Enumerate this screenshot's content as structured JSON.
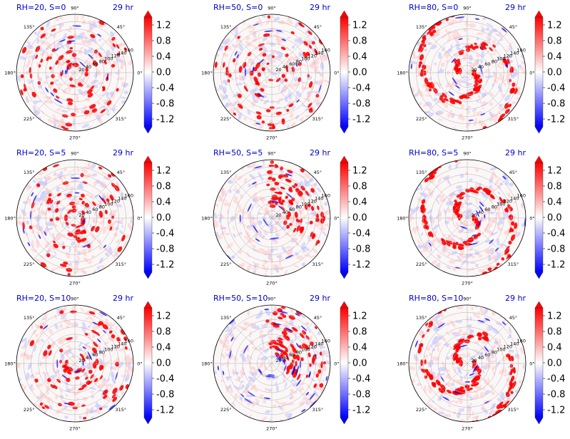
{
  "chart_data": [
    {
      "type": "heatmap",
      "coordinate_system": "polar",
      "title": "RH=20, S=0",
      "time_label": "29 hr",
      "angle_ticks": [
        "0°",
        "45°",
        "90°",
        "135°",
        "180°",
        "225°",
        "270°",
        "315°"
      ],
      "radial_ticks": [
        "20",
        "40",
        "60",
        "80",
        "100",
        "120",
        "140",
        "160"
      ],
      "colorbar": {
        "ticks": [
          "1.2",
          "0.8",
          "0.4",
          "0.0",
          "-0.4",
          "-0.8",
          "-1.2"
        ],
        "range": [
          -1.4,
          1.4
        ],
        "colormap": "bwr",
        "extend": "both"
      }
    },
    {
      "type": "heatmap",
      "coordinate_system": "polar",
      "title": "RH=50, S=0",
      "time_label": "29 hr",
      "angle_ticks": [
        "0°",
        "45°",
        "90°",
        "135°",
        "180°",
        "225°",
        "270°",
        "315°"
      ],
      "radial_ticks": [
        "20",
        "40",
        "60",
        "80",
        "100",
        "120",
        "140",
        "160"
      ],
      "colorbar": {
        "ticks": [
          "1.2",
          "0.8",
          "0.4",
          "0.0",
          "-0.4",
          "-0.8",
          "-1.2"
        ],
        "range": [
          -1.4,
          1.4
        ],
        "colormap": "bwr",
        "extend": "both"
      }
    },
    {
      "type": "heatmap",
      "coordinate_system": "polar",
      "title": "RH=80, S=0",
      "time_label": "29 hr",
      "angle_ticks": [
        "0°",
        "45°",
        "90°",
        "135°",
        "180°",
        "225°",
        "270°",
        "315°"
      ],
      "radial_ticks": [
        "20",
        "40",
        "60",
        "80",
        "100",
        "120",
        "140",
        "160"
      ],
      "colorbar": {
        "ticks": [
          "1.2",
          "0.8",
          "0.4",
          "0.0",
          "-0.4",
          "-0.8",
          "-1.2"
        ],
        "range": [
          -1.4,
          1.4
        ],
        "colormap": "bwr",
        "extend": "both"
      }
    },
    {
      "type": "heatmap",
      "coordinate_system": "polar",
      "title": "RH=20, S=5",
      "time_label": "29 hr",
      "angle_ticks": [
        "0°",
        "45°",
        "90°",
        "135°",
        "180°",
        "225°",
        "270°",
        "315°"
      ],
      "radial_ticks": [
        "20",
        "40",
        "60",
        "80",
        "100",
        "120",
        "140",
        "160"
      ],
      "colorbar": {
        "ticks": [
          "1.2",
          "0.8",
          "0.4",
          "0.0",
          "-0.4",
          "-0.8",
          "-1.2"
        ],
        "range": [
          -1.4,
          1.4
        ],
        "colormap": "bwr",
        "extend": "both"
      }
    },
    {
      "type": "heatmap",
      "coordinate_system": "polar",
      "title": "RH=50, S=5",
      "time_label": "29 hr",
      "angle_ticks": [
        "0°",
        "45°",
        "90°",
        "135°",
        "180°",
        "225°",
        "270°",
        "315°"
      ],
      "radial_ticks": [
        "20",
        "40",
        "60",
        "80",
        "100",
        "120",
        "140",
        "160"
      ],
      "colorbar": {
        "ticks": [
          "1.2",
          "0.8",
          "0.4",
          "0.0",
          "-0.4",
          "-0.8",
          "-1.2"
        ],
        "range": [
          -1.4,
          1.4
        ],
        "colormap": "bwr",
        "extend": "both"
      }
    },
    {
      "type": "heatmap",
      "coordinate_system": "polar",
      "title": "RH=80, S=5",
      "time_label": "29 hr",
      "angle_ticks": [
        "0°",
        "45°",
        "90°",
        "135°",
        "180°",
        "225°",
        "270°",
        "315°"
      ],
      "radial_ticks": [
        "20",
        "40",
        "60",
        "80",
        "100",
        "120",
        "140",
        "160"
      ],
      "colorbar": {
        "ticks": [
          "1.2",
          "0.8",
          "0.4",
          "0.0",
          "-0.4",
          "-0.8",
          "-1.2"
        ],
        "range": [
          -1.4,
          1.4
        ],
        "colormap": "bwr",
        "extend": "both"
      }
    },
    {
      "type": "heatmap",
      "coordinate_system": "polar",
      "title": "RH=20, S=10",
      "time_label": "29 hr",
      "angle_ticks": [
        "0°",
        "45°",
        "90°",
        "135°",
        "180°",
        "225°",
        "270°",
        "315°"
      ],
      "radial_ticks": [
        "20",
        "40",
        "60",
        "80",
        "100",
        "120",
        "140",
        "160"
      ],
      "colorbar": {
        "ticks": [
          "1.2",
          "0.8",
          "0.4",
          "0.0",
          "-0.4",
          "-0.8",
          "-1.2"
        ],
        "range": [
          -1.4,
          1.4
        ],
        "colormap": "bwr",
        "extend": "both"
      }
    },
    {
      "type": "heatmap",
      "coordinate_system": "polar",
      "title": "RH=50, S=10",
      "time_label": "29 hr",
      "angle_ticks": [
        "0°",
        "45°",
        "90°",
        "135°",
        "180°",
        "225°",
        "270°",
        "315°"
      ],
      "radial_ticks": [
        "20",
        "40",
        "60",
        "80",
        "100",
        "120",
        "140",
        "160"
      ],
      "colorbar": {
        "ticks": [
          "1.2",
          "0.8",
          "0.4",
          "0.0",
          "-0.4",
          "-0.8",
          "-1.2"
        ],
        "range": [
          -1.4,
          1.4
        ],
        "colormap": "bwr",
        "extend": "both"
      }
    },
    {
      "type": "heatmap",
      "coordinate_system": "polar",
      "title": "RH=80, S=10",
      "time_label": "29 hr",
      "angle_ticks": [
        "0°",
        "45°",
        "90°",
        "135°",
        "180°",
        "225°",
        "270°",
        "315°"
      ],
      "radial_ticks": [
        "20",
        "40",
        "60",
        "80",
        "100",
        "120",
        "140",
        "160"
      ],
      "colorbar": {
        "ticks": [
          "1.2",
          "0.8",
          "0.4",
          "0.0",
          "-0.4",
          "-0.8",
          "-1.2"
        ],
        "range": [
          -1.4,
          1.4
        ],
        "colormap": "bwr",
        "extend": "both"
      }
    }
  ],
  "colors": {
    "positive": "#ff0000",
    "negative": "#0000ff",
    "neutral": "#ffffff",
    "title_text": "#0000cc",
    "grid": "#b0b0b0"
  }
}
